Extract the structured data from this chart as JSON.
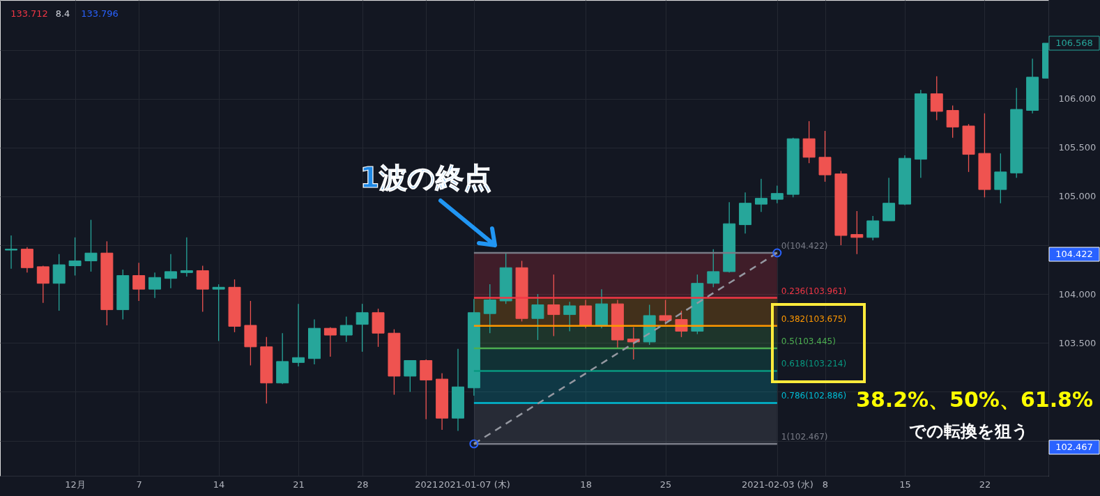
{
  "chart_data": {
    "type": "candlestick",
    "categories": [
      null,
      null,
      null,
      null,
      "12月",
      null,
      null,
      null,
      "7",
      null,
      null,
      null,
      null,
      "14",
      null,
      null,
      null,
      null,
      "21",
      null,
      null,
      null,
      "28",
      null,
      null,
      null,
      "2021",
      null,
      null,
      "2021-01-07 (木)",
      null,
      null,
      null,
      null,
      null,
      null,
      "18",
      null,
      null,
      null,
      null,
      "25",
      null,
      null,
      null,
      null,
      null,
      null,
      "2021-02-03 (水)",
      null,
      null,
      "8",
      null,
      null,
      null,
      null,
      "15",
      null,
      null,
      null,
      null,
      "22",
      null,
      null,
      null,
      null
    ],
    "ohlc": [
      [
        104.45,
        104.6,
        104.26,
        104.46
      ],
      [
        104.46,
        104.48,
        104.22,
        104.27
      ],
      [
        104.28,
        104.29,
        103.91,
        104.11
      ],
      [
        104.11,
        104.41,
        103.83,
        104.3
      ],
      [
        104.29,
        104.58,
        104.19,
        104.34
      ],
      [
        104.34,
        104.76,
        104.23,
        104.42
      ],
      [
        104.42,
        104.54,
        103.68,
        103.84
      ],
      [
        103.84,
        104.25,
        103.74,
        104.19
      ],
      [
        104.19,
        104.32,
        103.93,
        104.05
      ],
      [
        104.05,
        104.22,
        103.96,
        104.17
      ],
      [
        104.16,
        104.41,
        104.06,
        104.23
      ],
      [
        104.22,
        104.58,
        104.18,
        104.24
      ],
      [
        104.24,
        104.29,
        103.82,
        104.05
      ],
      [
        104.05,
        104.1,
        103.52,
        104.07
      ],
      [
        104.07,
        104.15,
        103.61,
        103.67
      ],
      [
        103.68,
        103.93,
        103.27,
        103.46
      ],
      [
        103.46,
        103.56,
        102.88,
        103.09
      ],
      [
        103.09,
        103.6,
        103.08,
        103.31
      ],
      [
        103.3,
        103.9,
        103.26,
        103.35
      ],
      [
        103.34,
        103.74,
        103.28,
        103.65
      ],
      [
        103.65,
        103.66,
        103.36,
        103.58
      ],
      [
        103.58,
        103.77,
        103.51,
        103.68
      ],
      [
        103.69,
        103.9,
        103.41,
        103.81
      ],
      [
        103.81,
        103.85,
        103.46,
        103.6
      ],
      [
        103.6,
        103.64,
        102.97,
        103.16
      ],
      [
        103.16,
        103.32,
        103.0,
        103.32
      ],
      [
        103.32,
        103.33,
        102.72,
        103.12
      ],
      [
        103.13,
        103.19,
        102.61,
        102.73
      ],
      [
        102.73,
        103.44,
        102.6,
        103.05
      ],
      [
        103.04,
        103.95,
        102.96,
        103.81
      ],
      [
        103.8,
        104.1,
        103.6,
        103.94
      ],
      [
        103.93,
        104.42,
        103.9,
        104.27
      ],
      [
        104.27,
        104.34,
        103.72,
        103.75
      ],
      [
        103.75,
        104.0,
        103.53,
        103.89
      ],
      [
        103.89,
        104.2,
        103.57,
        103.79
      ],
      [
        103.79,
        103.92,
        103.62,
        103.88
      ],
      [
        103.88,
        103.94,
        103.65,
        103.68
      ],
      [
        103.68,
        104.05,
        103.65,
        103.9
      ],
      [
        103.9,
        103.94,
        103.45,
        103.53
      ],
      [
        103.54,
        103.66,
        103.33,
        103.51
      ],
      [
        103.51,
        103.89,
        103.48,
        103.78
      ],
      [
        103.78,
        103.94,
        103.69,
        103.73
      ],
      [
        103.74,
        103.83,
        103.56,
        103.62
      ],
      [
        103.62,
        104.2,
        103.59,
        104.11
      ],
      [
        104.11,
        104.46,
        104.07,
        104.23
      ],
      [
        104.23,
        104.94,
        104.22,
        104.72
      ],
      [
        104.71,
        105.04,
        104.62,
        104.93
      ],
      [
        104.92,
        105.18,
        104.84,
        104.98
      ],
      [
        104.97,
        105.11,
        104.93,
        105.03
      ],
      [
        105.02,
        105.6,
        104.99,
        105.59
      ],
      [
        105.59,
        105.77,
        105.34,
        105.4
      ],
      [
        105.4,
        105.67,
        105.15,
        105.22
      ],
      [
        105.23,
        105.26,
        104.5,
        104.6
      ],
      [
        104.61,
        104.85,
        104.41,
        104.58
      ],
      [
        104.58,
        104.8,
        104.55,
        104.75
      ],
      [
        104.75,
        105.19,
        104.75,
        104.93
      ],
      [
        104.92,
        105.42,
        104.91,
        105.39
      ],
      [
        105.38,
        106.09,
        105.19,
        106.05
      ],
      [
        106.05,
        106.23,
        105.78,
        105.87
      ],
      [
        105.88,
        105.93,
        105.6,
        105.71
      ],
      [
        105.72,
        105.74,
        105.25,
        105.43
      ],
      [
        105.44,
        105.85,
        104.99,
        105.07
      ],
      [
        105.07,
        105.44,
        104.93,
        105.25
      ],
      [
        105.24,
        106.11,
        105.19,
        105.89
      ],
      [
        105.88,
        106.41,
        105.85,
        106.22
      ],
      [
        106.21,
        106.568,
        106.21,
        106.568
      ]
    ],
    "colors": [
      "#26a69a",
      "#ef5350",
      "#ef5350",
      "#26a69a",
      "#26a69a",
      "#26a69a",
      "#ef5350",
      "#26a69a",
      "#ef5350",
      "#26a69a",
      "#26a69a",
      "#26a69a",
      "#ef5350",
      "#26a69a",
      "#ef5350",
      "#ef5350",
      "#ef5350",
      "#26a69a",
      "#26a69a",
      "#26a69a",
      "#ef5350",
      "#26a69a",
      "#26a69a",
      "#ef5350",
      "#ef5350",
      "#26a69a",
      "#ef5350",
      "#ef5350",
      "#26a69a",
      "#26a69a",
      "#26a69a",
      "#26a69a",
      "#ef5350",
      "#26a69a",
      "#ef5350",
      "#26a69a",
      "#ef5350",
      "#26a69a",
      "#ef5350",
      "#ef5350",
      "#26a69a",
      "#ef5350",
      "#ef5350",
      "#26a69a",
      "#26a69a",
      "#26a69a",
      "#26a69a",
      "#26a69a",
      "#26a69a",
      "#26a69a",
      "#ef5350",
      "#ef5350",
      "#ef5350",
      "#ef5350",
      "#26a69a",
      "#26a69a",
      "#26a69a",
      "#26a69a",
      "#ef5350",
      "#ef5350",
      "#ef5350",
      "#ef5350",
      "#26a69a",
      "#26a69a",
      "#26a69a",
      "#26a69a"
    ],
    "series": [
      {
        "type": "line",
        "color": "#787b86",
        "x": [
          "2021-01-07 (木)",
          "2021-02-03 (水)"
        ],
        "values": [
          104.422,
          104.422
        ]
      },
      {
        "type": "line",
        "color": "#f23645",
        "x": [
          "2021-01-07 (木)",
          "2021-02-03 (水)"
        ],
        "values": [
          103.961,
          103.961
        ],
        "lower": [
          103.961,
          103.961
        ],
        "upper": [
          104.422,
          104.422
        ]
      },
      {
        "type": "line",
        "color": "#ff9800",
        "x": [
          "2021-01-07 (木)",
          "2021-02-03 (水)"
        ],
        "values": [
          103.675,
          103.675
        ],
        "lower": [
          103.675,
          103.675
        ],
        "upper": [
          103.961,
          103.961
        ]
      },
      {
        "type": "line",
        "color": "#4caf50",
        "x": [
          "2021-01-07 (木)",
          "2021-02-03 (水)"
        ],
        "values": [
          103.445,
          103.445
        ],
        "lower": [
          103.445,
          103.445
        ],
        "upper": [
          103.675,
          103.675
        ]
      },
      {
        "type": "line",
        "color": "#089981",
        "x": [
          "2021-01-07 (木)",
          "2021-02-03 (水)"
        ],
        "values": [
          103.214,
          103.214
        ],
        "lower": [
          103.214,
          103.214
        ],
        "upper": [
          103.445,
          103.445
        ]
      },
      {
        "type": "line",
        "color": "#00bcd4",
        "x": [
          "2021-01-07 (木)",
          "2021-02-03 (水)"
        ],
        "values": [
          102.886,
          102.886
        ],
        "lower": [
          102.886,
          102.886
        ],
        "upper": [
          103.214,
          103.214
        ]
      },
      {
        "type": "line",
        "color": "#787b86",
        "x": [
          "2021-01-07 (木)",
          "2021-02-03 (水)"
        ],
        "values": [
          102.467,
          102.467
        ],
        "lower": [
          102.467,
          102.467
        ],
        "upper": [
          102.886,
          102.886
        ]
      },
      {
        "type": "line",
        "color": "#9598a1",
        "line_style": "dashed",
        "x": [
          "2021-01-07 (木)",
          "2021-02-03 (水)"
        ],
        "values": [
          102.467,
          104.422
        ]
      },
      {
        "type": "scatter",
        "color": "#2962ff",
        "marker": "circle",
        "x": [
          "2021-01-07 (木)",
          "2021-02-03 (水)"
        ],
        "values": [
          102.467,
          104.422
        ]
      }
    ],
    "annotations": [
      "133.712",
      "8.4",
      "133.796",
      "1波の終点",
      "38.2%、50%、61.8%",
      "での転換を狙う",
      {
        "text": "0(104.422)",
        "x": "2021-02-03 (水)",
        "y": 104.422
      },
      {
        "text": "0.236(103.961)",
        "x": "2021-02-03 (水)",
        "y": 103.961
      },
      {
        "text": "0.382(103.675)",
        "x": "2021-02-03 (水)",
        "y": 103.675
      },
      {
        "text": "0.5(103.445)",
        "x": "2021-02-03 (水)",
        "y": 103.445
      },
      {
        "text": "0.618(103.214)",
        "x": "2021-02-03 (水)",
        "y": 103.214
      },
      {
        "text": "0.786(102.886)",
        "x": "2021-02-03 (水)",
        "y": 102.886
      },
      {
        "text": "1(102.467)",
        "x": "2021-02-03 (水)",
        "y": 102.467
      },
      "106.568",
      "104.422",
      "102.467"
    ],
    "ylim": [
      102.14,
      107.01
    ],
    "yticks": [
      {
        "value": 102.5,
        "label": null
      },
      {
        "value": 103.0,
        "label": null
      },
      {
        "value": 103.5,
        "label": "103.500"
      },
      {
        "value": 104.0,
        "label": "104.000"
      },
      {
        "value": 104.5,
        "label": null
      },
      {
        "value": 105.0,
        "label": "105.000"
      },
      {
        "value": 105.5,
        "label": "105.500"
      },
      {
        "value": 106.0,
        "label": "106.000"
      },
      {
        "value": 106.5,
        "label": null
      },
      {
        "value": 107.0,
        "label": null
      }
    ],
    "grid": true
  }
}
